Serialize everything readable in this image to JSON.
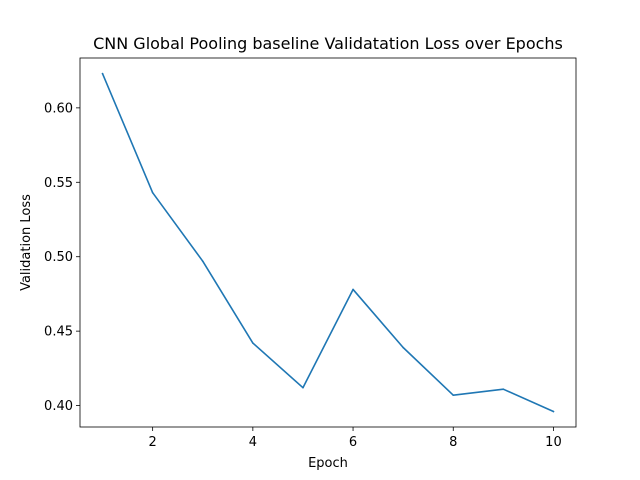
{
  "chart_data": {
    "type": "line",
    "title": "CNN Global Pooling baseline Validatation Loss over Epochs",
    "xlabel": "Epoch",
    "ylabel": "Validation Loss",
    "x": [
      1,
      2,
      3,
      4,
      5,
      6,
      7,
      8,
      9,
      10
    ],
    "series": [
      {
        "values": [
          0.623,
          0.543,
          0.497,
          0.442,
          0.412,
          0.478,
          0.439,
          0.407,
          0.411,
          0.396
        ],
        "color": "#1f77b4"
      }
    ],
    "xlim": [
      0.55,
      10.45
    ],
    "ylim": [
      0.3856,
      0.6335
    ],
    "xticks": [
      2,
      4,
      6,
      8,
      10
    ],
    "yticks": [
      0.4,
      0.45,
      0.5,
      0.55,
      0.6
    ],
    "xtick_labels": [
      "2",
      "4",
      "6",
      "8",
      "10"
    ],
    "ytick_labels": [
      "0.40",
      "0.45",
      "0.50",
      "0.55",
      "0.60"
    ],
    "grid": false,
    "legend": "none"
  }
}
